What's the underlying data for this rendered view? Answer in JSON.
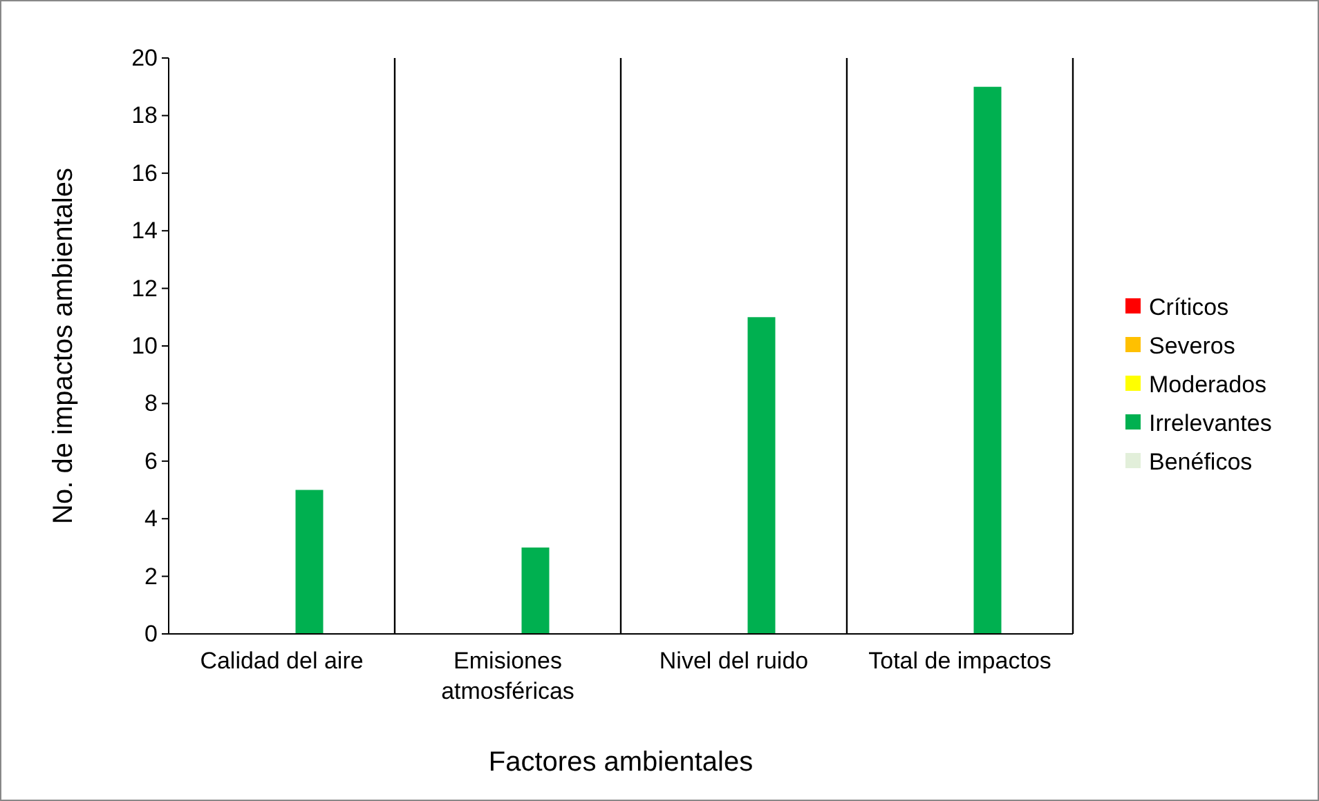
{
  "chart_data": {
    "type": "bar",
    "xlabel": "Factores ambientales",
    "ylabel": "No. de impactos ambientales",
    "categories": [
      "Calidad del aire",
      "Emisiones atmosféricas",
      "Nivel del ruido",
      "Total de impactos"
    ],
    "series": [
      {
        "name": "Críticos",
        "color": "#ff0000",
        "values": [
          0,
          0,
          0,
          0
        ]
      },
      {
        "name": "Severos",
        "color": "#ffc000",
        "values": [
          0,
          0,
          0,
          0
        ]
      },
      {
        "name": "Moderados",
        "color": "#ffff00",
        "values": [
          0,
          0,
          0,
          0
        ]
      },
      {
        "name": "Irrelevantes",
        "color": "#00b050",
        "values": [
          5,
          3,
          11,
          19
        ]
      },
      {
        "name": "Benéficos",
        "color": "#e2efda",
        "values": [
          0,
          0,
          0,
          0
        ]
      }
    ],
    "ylim": [
      0,
      20
    ],
    "yticks": [
      0,
      2,
      4,
      6,
      8,
      10,
      12,
      14,
      16,
      18,
      20
    ],
    "grid": "x",
    "legend": "right"
  }
}
